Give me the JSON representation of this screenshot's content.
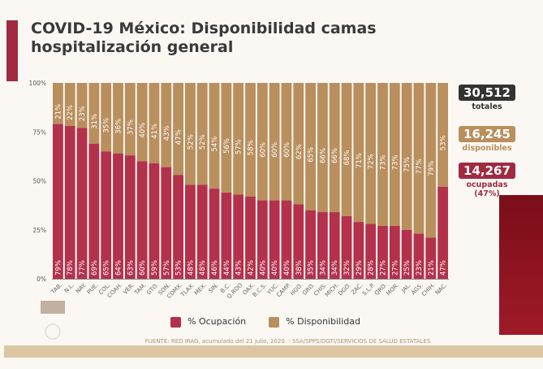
{
  "header": {
    "title": "COVID-19 México: Disponibilidad camas hospitalización general"
  },
  "stats": {
    "totales_value": "30,512",
    "totales_label": "totales",
    "disponibles_value": "16,245",
    "disponibles_label": "disponibles",
    "ocupadas_value": "14,267",
    "ocupadas_label": "ocupadas",
    "ocupadas_pct": "(47%)"
  },
  "colors": {
    "ocupacion": "#b3314b",
    "disponibilidad": "#b98f5e",
    "dark": "#333333"
  },
  "footer": {
    "source": "FUENTE: RED IRAG, acumulado del 21 julio, 2020. -  SSA/SPPS/DGTI/SERVICIOS DE SALUD ESTATALES"
  },
  "chart_data": {
    "type": "bar",
    "stacked": true,
    "title": "COVID-19 México: Disponibilidad camas hospitalización general",
    "categories": [
      "TAB.",
      "N.L.",
      "NAY.",
      "PUE.",
      "COL.",
      "COAH.",
      "VER.",
      "TAM.",
      "GTO.",
      "SON.",
      "CDMX.",
      "TLAX.",
      "MEX.",
      "SIN.",
      "B.C.",
      "Q.ROO",
      "OAX.",
      "B.C.S.",
      "YUC.",
      "CAMP.",
      "HGO.",
      "GRO.",
      "CHIS.",
      "MICH.",
      "DGO.",
      "ZAC.",
      "S.L.P.",
      "QRO.",
      "MOR.",
      "JAL.",
      "AGS.",
      "CHIH.",
      "NAC."
    ],
    "series": [
      {
        "name": "% Ocupación",
        "values": [
          79,
          78,
          77,
          69,
          65,
          64,
          63,
          60,
          59,
          57,
          53,
          48,
          48,
          46,
          44,
          43,
          42,
          40,
          40,
          40,
          38,
          35,
          34,
          34,
          32,
          29,
          28,
          27,
          27,
          25,
          23,
          21,
          47
        ]
      },
      {
        "name": "% Disponibilidad",
        "values": [
          21,
          22,
          23,
          31,
          35,
          36,
          37,
          40,
          41,
          43,
          47,
          52,
          52,
          54,
          56,
          57,
          58,
          60,
          60,
          60,
          62,
          65,
          66,
          66,
          68,
          71,
          72,
          73,
          73,
          75,
          77,
          79,
          53
        ]
      }
    ],
    "yticks": [
      "0%",
      "25%",
      "50%",
      "75%",
      "100%"
    ],
    "ylim": [
      0,
      100
    ],
    "legend": "bottom"
  }
}
